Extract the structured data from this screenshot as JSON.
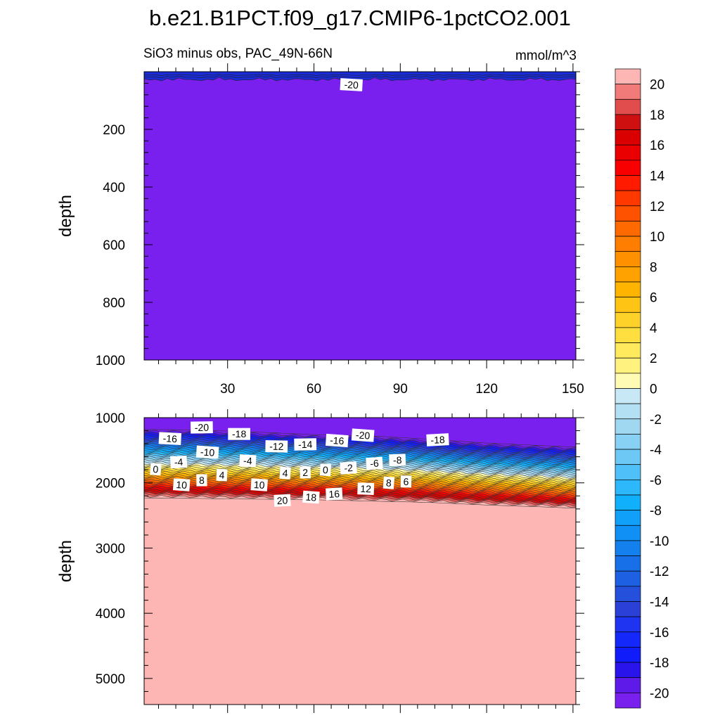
{
  "chart_data": {
    "type": "heatmap",
    "title": "b.e21.B1PCT.f09_g17.CMIP6-1pctCO2.001",
    "subtitle_left": "SiO3 minus obs, PAC_49N-66N",
    "subtitle_right": "mmol/m^3",
    "panels": [
      {
        "name": "upper",
        "ylabel": "depth",
        "ylim": [
          0,
          1000
        ],
        "yticks": [
          200,
          400,
          600,
          800,
          1000
        ],
        "xlim": [
          1,
          151
        ],
        "xticks": [
          30,
          60,
          90,
          120,
          150
        ],
        "fill_value": -20,
        "contour_labels": [
          {
            "text": "-20",
            "x": 73,
            "depth": 45
          }
        ]
      },
      {
        "name": "lower",
        "ylabel": "depth",
        "ylim": [
          1000,
          5400
        ],
        "yticks": [
          1000,
          2000,
          3000,
          4000,
          5000
        ],
        "xlim": [
          1,
          151
        ],
        "xticks": [
          30,
          60,
          90,
          120,
          150
        ],
        "gradient_top": {
          "x": [
            1,
            20,
            40,
            60,
            80,
            100,
            120,
            140,
            151
          ],
          "depth": [
            1180,
            1190,
            1220,
            1260,
            1280,
            1330,
            1390,
            1430,
            1450
          ]
        },
        "gradient_bottom": {
          "x": [
            1,
            20,
            40,
            60,
            80,
            100,
            120,
            140,
            151
          ],
          "depth": [
            2230,
            2240,
            2250,
            2260,
            2280,
            2300,
            2340,
            2370,
            2390
          ]
        },
        "contour_labels": [
          {
            "text": "-20",
            "x": 21,
            "depth": 1150
          },
          {
            "text": "-18",
            "x": 34,
            "depth": 1250
          },
          {
            "text": "-16",
            "x": 10,
            "depth": 1320
          },
          {
            "text": "-10",
            "x": 23,
            "depth": 1530
          },
          {
            "text": "-12",
            "x": 47,
            "depth": 1440
          },
          {
            "text": "-14",
            "x": 57,
            "depth": 1410
          },
          {
            "text": "-16",
            "x": 68,
            "depth": 1350
          },
          {
            "text": "-20",
            "x": 77,
            "depth": 1270
          },
          {
            "text": "-18",
            "x": 103,
            "depth": 1340
          },
          {
            "text": "0",
            "x": 5,
            "depth": 1790
          },
          {
            "text": "-4",
            "x": 13,
            "depth": 1680
          },
          {
            "text": "-4",
            "x": 37,
            "depth": 1660
          },
          {
            "text": "4",
            "x": 28,
            "depth": 1880
          },
          {
            "text": "8",
            "x": 21,
            "depth": 1960
          },
          {
            "text": "10",
            "x": 14,
            "depth": 2030
          },
          {
            "text": "10",
            "x": 41,
            "depth": 2030
          },
          {
            "text": "4",
            "x": 50,
            "depth": 1850
          },
          {
            "text": "2",
            "x": 57,
            "depth": 1840
          },
          {
            "text": "0",
            "x": 64,
            "depth": 1800
          },
          {
            "text": "-2",
            "x": 72,
            "depth": 1770
          },
          {
            "text": "-6",
            "x": 81,
            "depth": 1700
          },
          {
            "text": "-8",
            "x": 89,
            "depth": 1650
          },
          {
            "text": "12",
            "x": 78,
            "depth": 2090
          },
          {
            "text": "8",
            "x": 86,
            "depth": 2000
          },
          {
            "text": "6",
            "x": 92,
            "depth": 1980
          },
          {
            "text": "20",
            "x": 49,
            "depth": 2270
          },
          {
            "text": "18",
            "x": 59,
            "depth": 2220
          },
          {
            "text": "16",
            "x": 67,
            "depth": 2170
          }
        ]
      }
    ],
    "colorbar": {
      "labels": [
        "20",
        "18",
        "16",
        "14",
        "12",
        "10",
        "8",
        "6",
        "4",
        "2",
        "0",
        "-2",
        "-4",
        "-6",
        "-8",
        "-10",
        "-12",
        "-14",
        "-16",
        "-18",
        "-20"
      ],
      "colors": [
        "#fdb6b4",
        "#f07b78",
        "#e14c4c",
        "#cf1010",
        "#db0000",
        "#ea0000",
        "#f80000",
        "#ff1a00",
        "#ff3800",
        "#ff5200",
        "#ff6a00",
        "#ff7e00",
        "#ff9000",
        "#ffa200",
        "#ffb400",
        "#ffc414",
        "#ffd22a",
        "#ffde40",
        "#ffe95c",
        "#fff27e",
        "#fffab4",
        "#c8e8f6",
        "#b4e0f4",
        "#a0d8f2",
        "#88d0f4",
        "#6ec8f6",
        "#50c0f8",
        "#2cb8fa",
        "#10b0fc",
        "#10a0fa",
        "#1090f4",
        "#1480ee",
        "#1870e8",
        "#1e60e2",
        "#2450dc",
        "#2a40d6",
        "#1e34f0",
        "#1428fa",
        "#101cfa",
        "#2a14ec",
        "#5e1ae8",
        "#7a20ee"
      ]
    }
  }
}
